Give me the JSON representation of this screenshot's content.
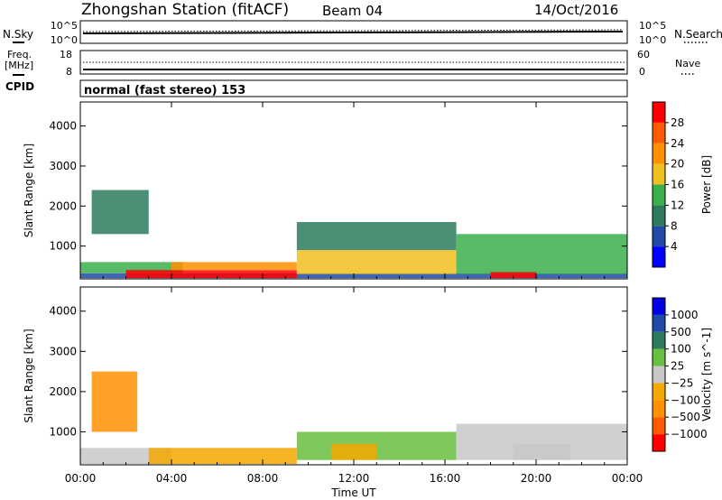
{
  "header": {
    "title": "Zhongshan Station (fitACF)",
    "beam": "Beam 04",
    "date": "14/Oct/2016",
    "cpid_label": "CPID",
    "cpid_text": "normal (fast stereo) 153"
  },
  "noise_panel": {
    "left_label": "N.Sky",
    "right_label": "N.Search",
    "left_ticks": [
      "10^5",
      "10^0"
    ],
    "right_ticks": [
      "10^5",
      "10^0"
    ]
  },
  "freq_panel": {
    "left_label_1": "Freq.",
    "left_label_2": "[MHz]",
    "right_label": "Nave",
    "left_ticks": [
      "18",
      "8"
    ],
    "right_ticks": [
      "60",
      "0"
    ]
  },
  "colors": {
    "power": [
      "#0000ff",
      "#1f4aa8",
      "#2c7b5c",
      "#3ab04a",
      "#f0c020",
      "#ff9000",
      "#ff5a00",
      "#ff0000"
    ],
    "velocity": [
      "#ff0000",
      "#ff5a00",
      "#ff9000",
      "#f5a800",
      "#c8c8c8",
      "#68c040",
      "#2c7b5c",
      "#1f4aa8",
      "#0000e0"
    ]
  },
  "chart_data": [
    {
      "type": "heatmap",
      "title": "",
      "xlabel": "",
      "ylabel": "Slant Range [km]",
      "xlim": [
        "00:00",
        "24:00"
      ],
      "ylim": [
        180,
        4600
      ],
      "colorbar_label": "Power [dB]",
      "colorbar_ticks": [
        "28",
        "24",
        "20",
        "16",
        "12",
        "8",
        "4"
      ],
      "colorbar_range": [
        0,
        32
      ],
      "regions": [
        {
          "t0": 0.0,
          "t1": 24.0,
          "r0": 200,
          "r1": 320,
          "level": 4
        },
        {
          "t0": 0.0,
          "t1": 4.5,
          "r0": 320,
          "r1": 600,
          "level": 12
        },
        {
          "t0": 2.0,
          "t1": 9.5,
          "r0": 200,
          "r1": 400,
          "level": 30
        },
        {
          "t0": 4.0,
          "t1": 9.5,
          "r0": 400,
          "r1": 600,
          "level": 20
        },
        {
          "t0": 9.5,
          "t1": 16.5,
          "r0": 300,
          "r1": 900,
          "level": 17
        },
        {
          "t0": 9.5,
          "t1": 16.5,
          "r0": 900,
          "r1": 1600,
          "level": 11
        },
        {
          "t0": 16.5,
          "t1": 24.0,
          "r0": 300,
          "r1": 1300,
          "level": 15
        },
        {
          "t0": 18.0,
          "t1": 20.0,
          "r0": 200,
          "r1": 350,
          "level": 30
        },
        {
          "t0": 0.5,
          "t1": 3.0,
          "r0": 1300,
          "r1": 2400,
          "level": 9
        }
      ]
    },
    {
      "type": "heatmap",
      "title": "",
      "xlabel": "Time UT",
      "ylabel": "Slant Range [km]",
      "xlim": [
        "00:00",
        "24:00"
      ],
      "ylim": [
        180,
        4600
      ],
      "x_ticks": [
        "00:00",
        "04:00",
        "08:00",
        "12:00",
        "16:00",
        "20:00",
        "00:00"
      ],
      "y_ticks": [
        "1000",
        "2000",
        "3000",
        "4000"
      ],
      "colorbar_label": "Velocity [m s^-1]",
      "colorbar_ticks": [
        "1000",
        "500",
        "100",
        "25",
        "−25",
        "−100",
        "−500",
        "−1000"
      ],
      "colorbar_range": [
        -1200,
        1200
      ],
      "regions": [
        {
          "t0": 0.0,
          "t1": 4.0,
          "r0": 200,
          "r1": 600,
          "level": -50
        },
        {
          "t0": 3.0,
          "t1": 9.5,
          "r0": 200,
          "r1": 600,
          "level": -150
        },
        {
          "t0": 9.5,
          "t1": 16.5,
          "r0": 300,
          "r1": 1000,
          "level": 150
        },
        {
          "t0": 11.0,
          "t1": 13.0,
          "r0": 300,
          "r1": 700,
          "level": -150
        },
        {
          "t0": 16.5,
          "t1": 24.0,
          "r0": 300,
          "r1": 1200,
          "level": 50
        },
        {
          "t0": 19.0,
          "t1": 21.5,
          "r0": 300,
          "r1": 700,
          "level": 0
        },
        {
          "t0": 0.5,
          "t1": 2.5,
          "r0": 1000,
          "r1": 2500,
          "level": -500
        }
      ]
    }
  ]
}
